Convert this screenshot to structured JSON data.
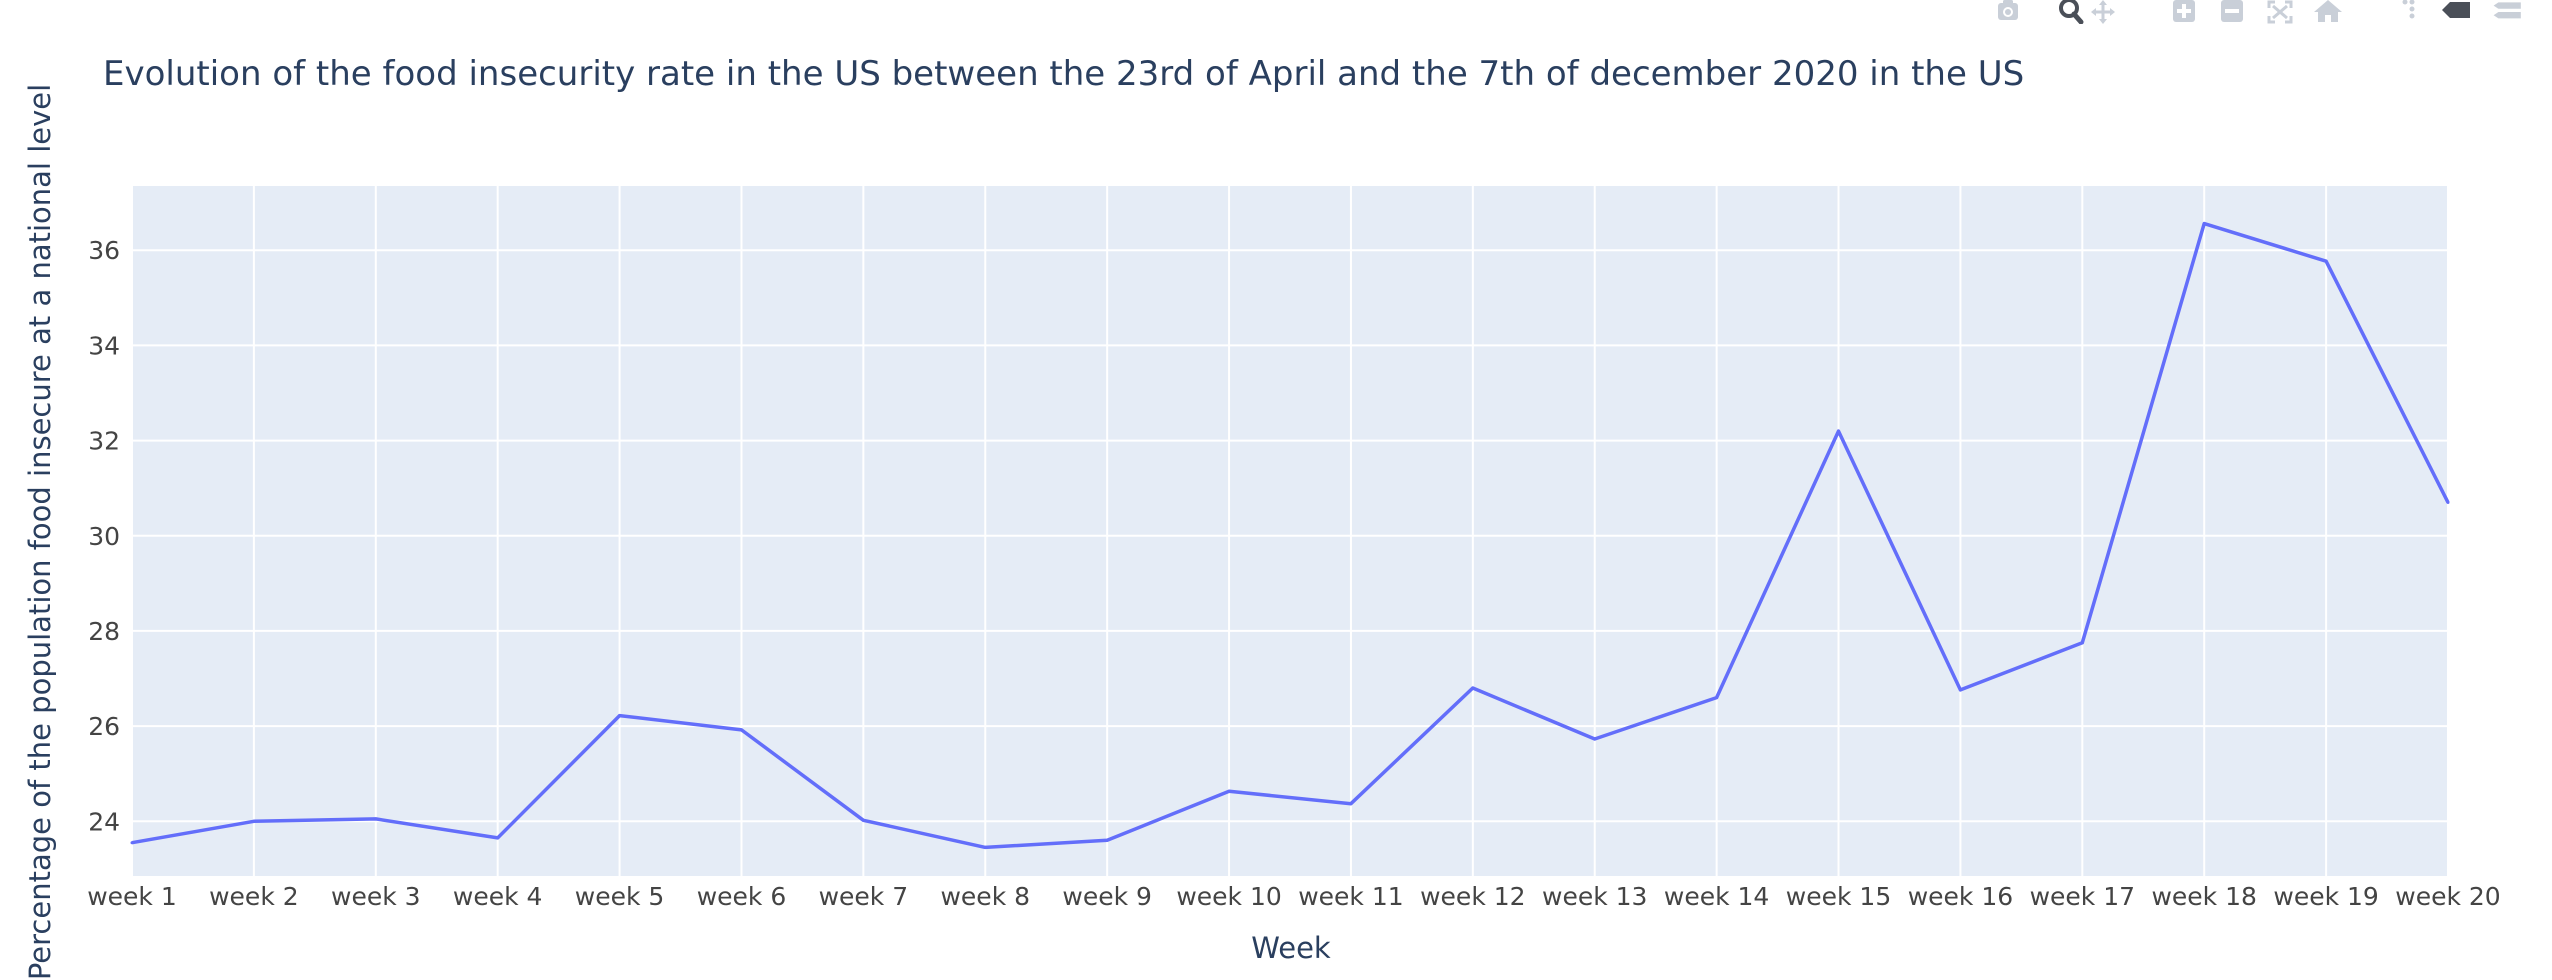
{
  "toolbar": {
    "buttons": [
      "camera-icon",
      "zoom-icon",
      "pan-icon",
      "zoom-in-icon",
      "zoom-out-icon",
      "autoscale-icon",
      "home-icon",
      "spike-icon",
      "hover-closest-icon",
      "hover-compare-icon"
    ]
  },
  "colors": {
    "plot_bg": "#e5ecf6",
    "line": "#636efa",
    "grid": "#ffffff",
    "text": "#2a3f5f",
    "tick_text": "#444444",
    "toolbar_icon": "#c9cfd8"
  },
  "chart_data": {
    "type": "line",
    "title": "Evolution of the food insecurity rate in the US between the 23rd of April and the 7th of december 2020 in the US",
    "xlabel": "Week",
    "ylabel": "Percentage of the population food insecure at a national level",
    "categories": [
      "week 1",
      "week 2",
      "week 3",
      "week 4",
      "week 5",
      "week 6",
      "week 7",
      "week 8",
      "week 9",
      "week 10",
      "week 11",
      "week 12",
      "week 13",
      "week 14",
      "week 15",
      "week 16",
      "week 17",
      "week 18",
      "week 19",
      "week 20"
    ],
    "values": [
      23.55,
      24.0,
      24.05,
      23.65,
      26.22,
      25.92,
      24.02,
      23.45,
      23.6,
      24.63,
      24.37,
      26.8,
      25.73,
      26.6,
      32.2,
      26.76,
      27.75,
      36.56,
      35.77,
      30.7
    ],
    "yticks": [
      24,
      26,
      28,
      30,
      32,
      34,
      36
    ],
    "ylim": [
      22.85,
      37.35
    ],
    "grid": true,
    "legend": "none"
  }
}
